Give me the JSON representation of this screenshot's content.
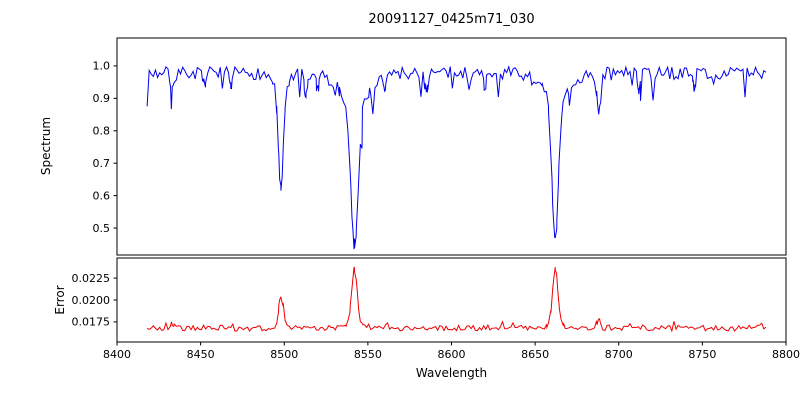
{
  "figure": {
    "title": "20091127_0425m71_030",
    "background": "#ffffff"
  },
  "chart_data": {
    "type": "line",
    "title": "20091127_0425m71_030",
    "xlabel": "Wavelength",
    "xlim": [
      8400,
      8800
    ],
    "xticks": [
      8400,
      8450,
      8500,
      8550,
      8600,
      8650,
      8700,
      8750,
      8800
    ],
    "xtick_labels": [
      "8400",
      "8450",
      "8500",
      "8550",
      "8600",
      "8650",
      "8700",
      "8750",
      "8800"
    ],
    "x_start": 8418,
    "x_end": 8788,
    "x_step": 1.25,
    "legend": "none",
    "grid": false,
    "panels": [
      {
        "name": "spectrum",
        "ylabel": "Spectrum",
        "color": "#0000ee",
        "ylim": [
          0.417,
          1.086
        ],
        "yticks": [
          0.5,
          0.6,
          0.7,
          0.8,
          0.9,
          1.0
        ],
        "ytick_labels": [
          "0.5",
          "0.6",
          "0.7",
          "0.8",
          "0.9",
          "1.0"
        ],
        "baseline": 0.978,
        "noise": 0.02,
        "spike_prob": 0.08,
        "spike_max": 0.085,
        "spike_sign": -1,
        "seed": 7,
        "lines": [
          {
            "center": 8498,
            "amp": -0.32,
            "width": 1.5
          },
          {
            "center": 8498,
            "amp": -0.04,
            "width": 5
          },
          {
            "center": 8542,
            "amp": -0.44,
            "width": 2.2
          },
          {
            "center": 8542,
            "amp": -0.09,
            "width": 9
          },
          {
            "center": 8662,
            "amp": -0.44,
            "width": 1.9
          },
          {
            "center": 8662,
            "amp": -0.08,
            "width": 8
          },
          {
            "center": 8688,
            "amp": -0.12,
            "width": 1.2
          },
          {
            "center": 8433,
            "amp": -0.05,
            "width": 1.0
          },
          {
            "center": 8452,
            "amp": -0.04,
            "width": 0.9
          },
          {
            "center": 8468,
            "amp": -0.05,
            "width": 0.9
          },
          {
            "center": 8513,
            "amp": -0.07,
            "width": 1.0
          },
          {
            "center": 8520,
            "amp": -0.05,
            "width": 0.9
          },
          {
            "center": 8560,
            "amp": -0.04,
            "width": 0.9
          },
          {
            "center": 8585,
            "amp": -0.05,
            "width": 1.0
          },
          {
            "center": 8620,
            "amp": -0.04,
            "width": 0.9
          },
          {
            "center": 8712,
            "amp": -0.05,
            "width": 0.9
          },
          {
            "center": 8745,
            "amp": -0.04,
            "width": 0.9
          }
        ],
        "line_minima": {
          "8498": 0.61,
          "8542": 0.45,
          "8662": 0.46
        }
      },
      {
        "name": "error",
        "ylabel": "Error",
        "color": "#ee0000",
        "ylim": [
          0.0152,
          0.0248
        ],
        "yticks": [
          0.0175,
          0.02,
          0.0225
        ],
        "ytick_labels": [
          "0.0175",
          "0.0200",
          "0.0225"
        ],
        "baseline": 0.0168,
        "noise": 0.00035,
        "spike_prob": 0.06,
        "spike_max": 0.0007,
        "spike_sign": 1,
        "seed": 21,
        "lines": [
          {
            "center": 8498,
            "amp": 0.0036,
            "width": 1.4
          },
          {
            "center": 8542,
            "amp": 0.0062,
            "width": 1.6
          },
          {
            "center": 8542,
            "amp": 0.0006,
            "width": 5
          },
          {
            "center": 8662,
            "amp": 0.0063,
            "width": 1.5
          },
          {
            "center": 8662,
            "amp": 0.0005,
            "width": 5
          },
          {
            "center": 8688,
            "amp": 0.0011,
            "width": 1.0
          },
          {
            "center": 8433,
            "amp": 0.0004,
            "width": 0.9
          }
        ],
        "line_maxima": {
          "8498": 0.0204,
          "8542": 0.0236,
          "8662": 0.0236
        }
      }
    ]
  }
}
